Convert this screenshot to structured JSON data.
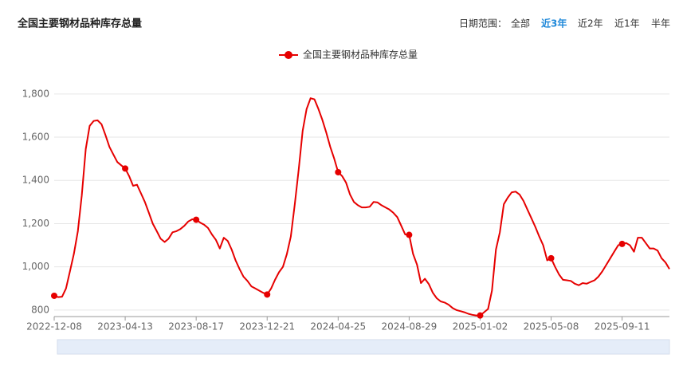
{
  "header": {
    "date_range_label": "日期范围：",
    "ranges": [
      "全部",
      "近3年",
      "近2年",
      "近1年",
      "半年"
    ],
    "active_range_index": 1
  },
  "chart_data": {
    "type": "line",
    "title": "全国主要钢材品种库存总量",
    "categories": [
      "2022-12-08",
      null,
      null,
      null,
      null,
      null,
      null,
      null,
      null,
      null,
      null,
      null,
      null,
      null,
      null,
      null,
      null,
      null,
      "2023-04-13",
      null,
      null,
      null,
      null,
      null,
      null,
      null,
      null,
      null,
      null,
      null,
      null,
      null,
      null,
      null,
      null,
      null,
      "2023-08-17",
      null,
      null,
      null,
      null,
      null,
      null,
      null,
      null,
      null,
      null,
      null,
      null,
      null,
      null,
      null,
      null,
      null,
      "2023-12-21",
      null,
      null,
      null,
      null,
      null,
      null,
      null,
      null,
      null,
      null,
      null,
      null,
      null,
      null,
      null,
      null,
      null,
      "2024-04-25",
      null,
      null,
      null,
      null,
      null,
      null,
      null,
      null,
      null,
      null,
      null,
      null,
      null,
      null,
      null,
      null,
      null,
      "2024-08-29",
      null,
      null,
      null,
      null,
      null,
      null,
      null,
      null,
      null,
      null,
      null,
      null,
      null,
      null,
      null,
      null,
      null,
      "2025-01-02",
      null,
      null,
      null,
      null,
      null,
      null,
      null,
      null,
      null,
      null,
      null,
      null,
      null,
      null,
      null,
      null,
      null,
      "2025-05-08",
      null,
      null,
      null,
      null,
      null,
      null,
      null,
      null,
      null,
      null,
      null,
      null,
      null,
      null,
      null,
      null,
      null,
      "2025-09-11",
      null,
      null,
      null,
      null,
      null,
      null,
      null,
      null,
      null,
      null,
      null,
      null
    ],
    "series": [
      {
        "name": "全国主要钢材品种库存总量",
        "color": "#e60000",
        "values": [
          866,
          860,
          862,
          900,
          980,
          1060,
          1165,
          1330,
          1545,
          1652,
          1675,
          1678,
          1660,
          1610,
          1555,
          1520,
          1485,
          1470,
          1455,
          1420,
          1375,
          1380,
          1340,
          1300,
          1250,
          1200,
          1165,
          1130,
          1115,
          1130,
          1160,
          1165,
          1175,
          1190,
          1210,
          1220,
          1218,
          1205,
          1195,
          1180,
          1150,
          1125,
          1085,
          1135,
          1120,
          1080,
          1030,
          990,
          955,
          935,
          910,
          900,
          890,
          880,
          872,
          900,
          940,
          975,
          1000,
          1060,
          1140,
          1290,
          1450,
          1630,
          1730,
          1780,
          1775,
          1730,
          1680,
          1620,
          1555,
          1500,
          1438,
          1420,
          1390,
          1335,
          1300,
          1285,
          1275,
          1275,
          1278,
          1300,
          1298,
          1285,
          1275,
          1265,
          1250,
          1230,
          1190,
          1150,
          1148,
          1060,
          1010,
          925,
          945,
          920,
          880,
          855,
          840,
          835,
          825,
          810,
          800,
          795,
          790,
          783,
          778,
          775,
          775,
          790,
          805,
          890,
          1080,
          1160,
          1290,
          1320,
          1345,
          1348,
          1335,
          1305,
          1265,
          1225,
          1185,
          1140,
          1100,
          1030,
          1040,
          1000,
          965,
          940,
          938,
          935,
          922,
          915,
          925,
          922,
          930,
          938,
          955,
          980,
          1010,
          1040,
          1070,
          1100,
          1106,
          1110,
          1100,
          1070,
          1135,
          1135,
          1110,
          1085,
          1085,
          1075,
          1040,
          1020,
          990
        ]
      }
    ],
    "ylim": [
      770,
      1875
    ],
    "yticks": [
      800,
      {
        "value": 1000,
        "label": "1,000"
      },
      {
        "value": 1200,
        "label": "1,200"
      },
      {
        "value": 1400,
        "label": "1,400"
      },
      {
        "value": 1600,
        "label": "1,600"
      },
      {
        "value": 1800,
        "label": "1,800"
      }
    ],
    "grid": true,
    "legend": "top"
  }
}
